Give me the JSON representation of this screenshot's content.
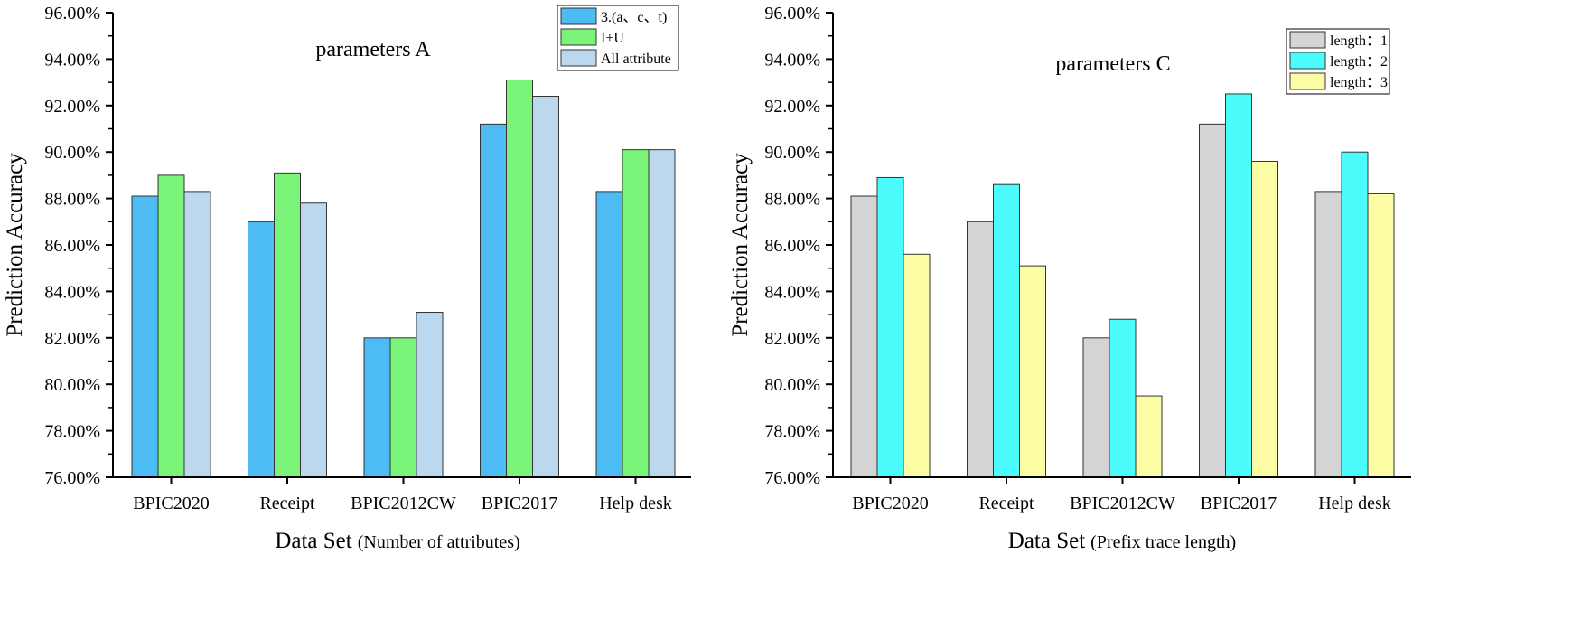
{
  "chart_data": [
    {
      "type": "bar",
      "title": "parameters A",
      "xlabel_main": "Data Set",
      "xlabel_note": "(Number of attributes)",
      "ylabel": "Prediction Accuracy",
      "ylim": [
        76,
        96
      ],
      "yticks": [
        "76.00%",
        "78.00%",
        "80.00%",
        "82.00%",
        "84.00%",
        "86.00%",
        "88.00%",
        "90.00%",
        "92.00%",
        "94.00%",
        "96.00%"
      ],
      "legend_position": "top-right",
      "categories": [
        "BPIC2020",
        "Receipt",
        "BPIC2012CW",
        "BPIC2017",
        "Help desk"
      ],
      "series": [
        {
          "name": "3.(a、c、t)",
          "color": "#4dbcf4",
          "values": [
            88.1,
            87.0,
            82.0,
            91.2,
            88.3
          ]
        },
        {
          "name": "I+U",
          "color": "#7af57a",
          "values": [
            89.0,
            89.1,
            82.0,
            93.1,
            90.1
          ]
        },
        {
          "name": "All attribute",
          "color": "#bcd8ef",
          "values": [
            88.3,
            87.8,
            83.1,
            92.4,
            90.1
          ]
        }
      ]
    },
    {
      "type": "bar",
      "title": "parameters C",
      "xlabel_main": "Data Set",
      "xlabel_note": "(Prefix trace length)",
      "ylabel": "Prediction Accuracy",
      "ylim": [
        76,
        96
      ],
      "yticks": [
        "76.00%",
        "78.00%",
        "80.00%",
        "82.00%",
        "84.00%",
        "86.00%",
        "88.00%",
        "90.00%",
        "92.00%",
        "94.00%",
        "96.00%"
      ],
      "legend_position": "top-right",
      "categories": [
        "BPIC2020",
        "Receipt",
        "BPIC2012CW",
        "BPIC2017",
        "Help desk"
      ],
      "series": [
        {
          "name": "length：1",
          "color": "#d4d4d4",
          "values": [
            88.1,
            87.0,
            82.0,
            91.2,
            88.3
          ]
        },
        {
          "name": "length：2",
          "color": "#4cfcfc",
          "values": [
            88.9,
            88.6,
            82.8,
            92.5,
            90.0
          ]
        },
        {
          "name": "length：3",
          "color": "#fcfca4",
          "values": [
            85.6,
            85.1,
            79.5,
            89.6,
            88.2
          ]
        }
      ]
    }
  ]
}
